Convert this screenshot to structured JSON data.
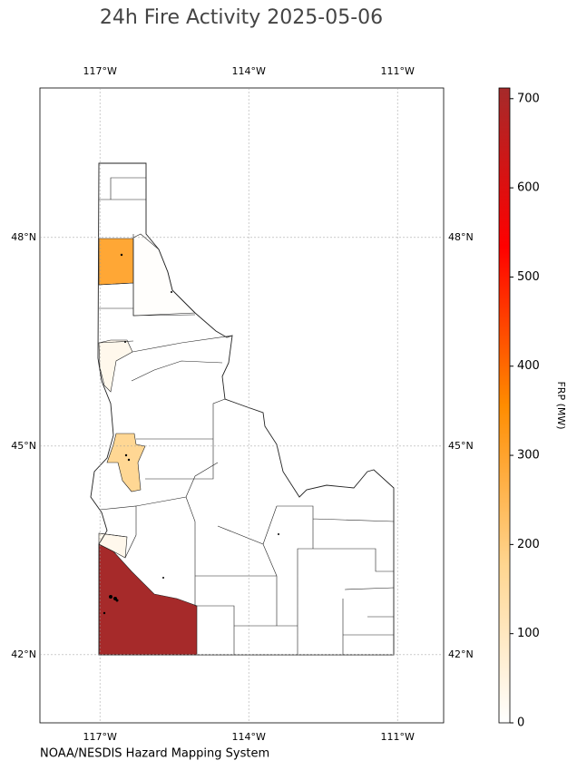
{
  "map": {
    "title": "24h Fire Activity 2025-05-06",
    "credit": "NOAA/NESDIS Hazard Mapping System",
    "xlim": [
      -118.21,
      -110.07
    ],
    "ylim": [
      41.02,
      50.15
    ],
    "lon_ticks": [
      {
        "value": -117,
        "label": "117°W"
      },
      {
        "value": -114,
        "label": "114°W"
      },
      {
        "value": -111,
        "label": "111°W"
      }
    ],
    "lat_ticks": [
      {
        "value": 48,
        "label": "48°N"
      },
      {
        "value": 45,
        "label": "45°N"
      },
      {
        "value": 42,
        "label": "42°N"
      }
    ],
    "grid": true,
    "regions": {
      "values": [
        710,
        290,
        170,
        30,
        5,
        30
      ]
    },
    "colorbar": {
      "label": "FRP (MW)",
      "lim": [
        0,
        712
      ],
      "ticks": [
        0,
        100,
        200,
        300,
        400,
        500,
        600,
        700
      ],
      "colors": [
        "#ffffff",
        "#ffd58f",
        "#ff8c00",
        "#ff0000",
        "#a52a2a"
      ]
    }
  }
}
